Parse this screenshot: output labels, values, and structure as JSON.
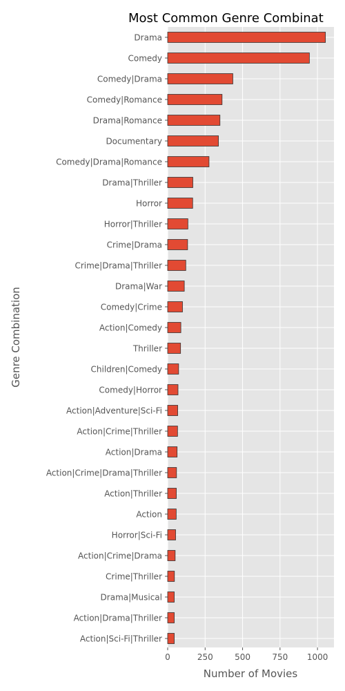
{
  "chart_data": {
    "type": "bar",
    "orientation": "horizontal",
    "title": "Most Common Genre Combinat",
    "xlabel": "Number of Movies",
    "ylabel": "Genre Combination",
    "categories": [
      "Drama",
      "Comedy",
      "Comedy|Drama",
      "Comedy|Romance",
      "Drama|Romance",
      "Documentary",
      "Comedy|Drama|Romance",
      "Drama|Thriller",
      "Horror",
      "Horror|Thriller",
      "Crime|Drama",
      "Crime|Drama|Thriller",
      "Drama|War",
      "Comedy|Crime",
      "Action|Comedy",
      "Thriller",
      "Children|Comedy",
      "Comedy|Horror",
      "Action|Adventure|Sci-Fi",
      "Action|Crime|Thriller",
      "Action|Drama",
      "Action|Crime|Drama|Thriller",
      "Action|Thriller",
      "Action",
      "Horror|Sci-Fi",
      "Action|Crime|Drama",
      "Crime|Thriller",
      "Drama|Musical",
      "Action|Drama|Thriller",
      "Action|Sci-Fi|Thriller"
    ],
    "values": [
      1053,
      946,
      435,
      363,
      349,
      339,
      276,
      168,
      167,
      135,
      133,
      121,
      111,
      99,
      88,
      86,
      73,
      69,
      67,
      66,
      63,
      59,
      58,
      57,
      53,
      50,
      45,
      44,
      44,
      44
    ],
    "xlim": [
      0,
      1110
    ],
    "xticks": [
      0,
      250,
      500,
      750,
      1000
    ],
    "grid": true,
    "colors": {
      "bar": "#E24A33",
      "bar_edge": "#333333",
      "plot_background": "#E5E5E5",
      "grid": "#FFFFFF"
    }
  }
}
